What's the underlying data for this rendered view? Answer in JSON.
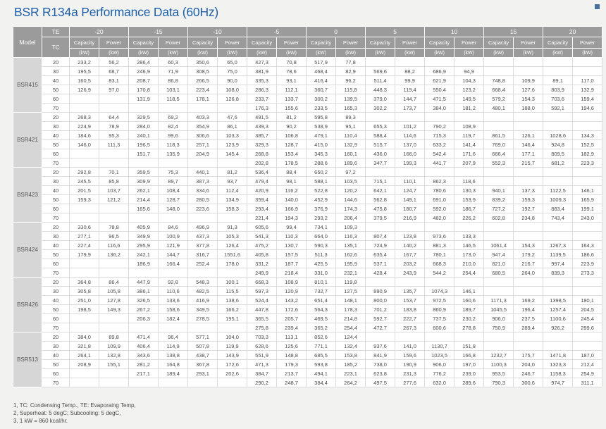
{
  "title": "BSR R134a Performance Data (60Hz)",
  "colors": {
    "accent_blue": "#1d5fa8",
    "header_gray": "#9b9b9b",
    "model_cell_gray": "#d6d6d6"
  },
  "table": {
    "model_header": "Model",
    "te_header": "TE",
    "tc_header": "TC",
    "capacity_label": "Capacity",
    "power_label": "Power",
    "unit_label": "(kW)",
    "te_values": [
      "-20",
      "-15",
      "-10",
      "-5",
      "0",
      "5",
      "10",
      "15",
      "20"
    ],
    "models": [
      {
        "name": "BSR415",
        "rows": [
          {
            "tc": "20",
            "values": [
              "233,2",
              "56,2",
              "286,4",
              "60,3",
              "350,6",
              "65,0",
              "427,3",
              "70,8",
              "517,9",
              "77,8",
              "",
              "",
              "",
              "",
              "",
              "",
              "",
              ""
            ]
          },
          {
            "tc": "30",
            "values": [
              "195,5",
              "68,7",
              "246,9",
              "71,9",
              "308,5",
              "75,0",
              "381,9",
              "78,6",
              "468,4",
              "82,9",
              "569,6",
              "88,2",
              "686,9",
              "94,9",
              "",
              "",
              "",
              ""
            ]
          },
          {
            "tc": "40",
            "values": [
              "160,5",
              "83,1",
              "208,7",
              "86,8",
              "266,5",
              "90,0",
              "335,3",
              "93,1",
              "416,4",
              "96,2",
              "511,4",
              "99,9",
              "621,9",
              "104,3",
              "748,8",
              "109,9",
              "89,1",
              "117,0"
            ]
          },
          {
            "tc": "50",
            "values": [
              "126,9",
              "97,0",
              "170,8",
              "103,1",
              "223,4",
              "108,0",
              "286,3",
              "112,1",
              "360,7",
              "115,8",
              "448,3",
              "119,4",
              "550,4",
              "123,2",
              "668,4",
              "127,6",
              "803,9",
              "132,9"
            ]
          },
          {
            "tc": "60",
            "values": [
              "",
              "",
              "131,9",
              "118,5",
              "178,1",
              "126,8",
              "233,7",
              "133,7",
              "300,2",
              "139,5",
              "379,0",
              "144,7",
              "471,5",
              "149,5",
              "579,2",
              "154,3",
              "703,6",
              "159,4"
            ]
          },
          {
            "tc": "70",
            "values": [
              "",
              "",
              "",
              "",
              "",
              "",
              "176,3",
              "155,6",
              "233,5",
              "165,3",
              "302,2",
              "173,7",
              "384,0",
              "181,2",
              "480,1",
              "188,0",
              "592,1",
              "194,6"
            ]
          }
        ]
      },
      {
        "name": "BSR421",
        "rows": [
          {
            "tc": "20",
            "values": [
              "268,3",
              "64,4",
              "329,5",
              "69,2",
              "403,3",
              "47,6",
              "491,5",
              "81,2",
              "595,8",
              "89,3",
              "",
              "",
              "",
              "",
              "",
              "",
              "",
              ""
            ]
          },
          {
            "tc": "30",
            "values": [
              "224,9",
              "78,9",
              "284,0",
              "82,4",
              "354,9",
              "86,1",
              "439,3",
              "90,2",
              "538,9",
              "95,1",
              "655,3",
              "101,2",
              "790,2",
              "108,9",
              "",
              "",
              "",
              ""
            ]
          },
          {
            "tc": "40",
            "values": [
              "184,6",
              "95,3",
              "240,1",
              "99,6",
              "306,6",
              "103,3",
              "385,7",
              "106,8",
              "479,1",
              "110,4",
              "588,4",
              "114,6",
              "715,3",
              "119,7",
              "861,5",
              "126,1",
              "1028,6",
              "134,3"
            ]
          },
          {
            "tc": "50",
            "values": [
              "146,0",
              "111,3",
              "196,5",
              "118,3",
              "257,1",
              "123,9",
              "329,3",
              "128,7",
              "415,0",
              "132,9",
              "515,7",
              "137,0",
              "633,2",
              "141,4",
              "769,0",
              "146,4",
              "924,8",
              "152,5"
            ]
          },
          {
            "tc": "60",
            "values": [
              "",
              "",
              "151,7",
              "135,9",
              "204,9",
              "145,4",
              "268,8",
              "153,4",
              "345,3",
              "160,1",
              "436,0",
              "166,0",
              "542,4",
              "171,6",
              "666,4",
              "177,1",
              "809,5",
              "182,9"
            ]
          },
          {
            "tc": "70",
            "values": [
              "",
              "",
              "",
              "",
              "",
              "",
              "202,8",
              "178,5",
              "288,6",
              "189,6",
              "347,7",
              "199,3",
              "441,7",
              "207,9",
              "552,3",
              "215,7",
              "681,2",
              "223,3"
            ]
          }
        ]
      },
      {
        "name": "BSR423",
        "rows": [
          {
            "tc": "20",
            "values": [
              "292,8",
              "70,1",
              "359,5",
              "75,3",
              "440,1",
              "81,2",
              "536,4",
              "88,4",
              "650,2",
              "97,2",
              "",
              "",
              "",
              "",
              "",
              "",
              "",
              ""
            ]
          },
          {
            "tc": "30",
            "values": [
              "245,5",
              "85,8",
              "309,9",
              "89,7",
              "387,3",
              "93,7",
              "479,4",
              "98,1",
              "588,1",
              "103,5",
              "715,1",
              "110,1",
              "862,3",
              "118,6",
              "",
              "",
              "",
              ""
            ]
          },
          {
            "tc": "40",
            "values": [
              "201,5",
              "103,7",
              "262,1",
              "108,4",
              "334,6",
              "112,4",
              "420,9",
              "116,2",
              "522,8",
              "120,2",
              "642,1",
              "124,7",
              "780,6",
              "130,3",
              "940,1",
              "137,3",
              "1122,5",
              "146,1"
            ]
          },
          {
            "tc": "50",
            "values": [
              "159,3",
              "121,2",
              "214,4",
              "128,7",
              "280,5",
              "134,9",
              "359,4",
              "140,0",
              "452,9",
              "144,6",
              "562,8",
              "149,1",
              "691,0",
              "153,9",
              "839,2",
              "159,3",
              "1009,3",
              "165,9"
            ]
          },
          {
            "tc": "60",
            "values": [
              "",
              "",
              "165,6",
              "148,0",
              "223,6",
              "158,3",
              "293,4",
              "166,9",
              "376,9",
              "174,3",
              "475,8",
              "180,7",
              "592,0",
              "186,7",
              "727,2",
              "192,7",
              "883,4",
              "199,1"
            ]
          },
          {
            "tc": "70",
            "values": [
              "",
              "",
              "",
              "",
              "",
              "",
              "221,4",
              "194,3",
              "293,2",
              "206,4",
              "379,5",
              "216,9",
              "482,0",
              "226,2",
              "602,8",
              "234,8",
              "743,4",
              "243,0"
            ]
          }
        ]
      },
      {
        "name": "BSR424",
        "rows": [
          {
            "tc": "20",
            "values": [
              "330,6",
              "78,8",
              "405,9",
              "84,6",
              "496,9",
              "91,3",
              "605,6",
              "99,4",
              "734,1",
              "109,3",
              "",
              "",
              "",
              "",
              "",
              "",
              "",
              ""
            ]
          },
          {
            "tc": "30",
            "values": [
              "277,1",
              "96,5",
              "349,9",
              "100,9",
              "437,3",
              "105,3",
              "541,3",
              "110,3",
              "664,0",
              "116,3",
              "807,4",
              "123,8",
              "973,6",
              "133,3",
              "",
              "",
              "",
              ""
            ]
          },
          {
            "tc": "40",
            "values": [
              "227,4",
              "116,6",
              "295,9",
              "121,9",
              "377,8",
              "126,4",
              "475,2",
              "130,7",
              "590,3",
              "135,1",
              "724,9",
              "140,2",
              "881,3",
              "146,5",
              "1061,4",
              "154,3",
              "1267,3",
              "164,3"
            ]
          },
          {
            "tc": "50",
            "values": [
              "179,9",
              "136,2",
              "242,1",
              "144,7",
              "316,7",
              "1551,6",
              "405,8",
              "157,5",
              "511,3",
              "162,6",
              "635,4",
              "167,7",
              "780,1",
              "173,0",
              "947,4",
              "179,2",
              "1139,5",
              "186,6"
            ]
          },
          {
            "tc": "60",
            "values": [
              "",
              "",
              "186,9",
              "166,4",
              "252,4",
              "178,0",
              "331,2",
              "187,7",
              "425,5",
              "195,9",
              "537,1",
              "203,2",
              "668,3",
              "210,0",
              "821,0",
              "216,7",
              "997,4",
              "223,9"
            ]
          },
          {
            "tc": "70",
            "values": [
              "",
              "",
              "",
              "",
              "",
              "",
              "249,9",
              "218,4",
              "331,0",
              "232,1",
              "428,4",
              "243,9",
              "544,2",
              "254,4",
              "680,5",
              "264,0",
              "839,3",
              "273,3"
            ]
          }
        ]
      },
      {
        "name": "BSR426",
        "rows": [
          {
            "tc": "20",
            "values": [
              "364,8",
              "86,4",
              "447,9",
              "92,8",
              "548,3",
              "100,1",
              "668,3",
              "108,9",
              "810,1",
              "119,8",
              "",
              "",
              "",
              "",
              "",
              "",
              "",
              ""
            ]
          },
          {
            "tc": "30",
            "values": [
              "305,8",
              "105,8",
              "386,1",
              "110,6",
              "482,5",
              "115,5",
              "597,3",
              "120,9",
              "732,7",
              "127,5",
              "890,9",
              "135,7",
              "1074,3",
              "146,1",
              "",
              "",
              "",
              ""
            ]
          },
          {
            "tc": "40",
            "values": [
              "251,0",
              "127,8",
              "326,5",
              "133,6",
              "416,9",
              "138,6",
              "524,4",
              "143,2",
              "651,4",
              "148,1",
              "800,0",
              "153,7",
              "972,5",
              "160,6",
              "1171,3",
              "169,2",
              "1398,5",
              "180,1"
            ]
          },
          {
            "tc": "50",
            "values": [
              "198,5",
              "149,3",
              "267,2",
              "158,6",
              "349,5",
              "166,2",
              "447,8",
              "172,6",
              "564,3",
              "178,3",
              "701,2",
              "183,8",
              "860,9",
              "189,7",
              "1045,5",
              "196,4",
              "1257,4",
              "204,5"
            ]
          },
          {
            "tc": "60",
            "values": [
              "",
              "",
              "206,3",
              "182,4",
              "278,5",
              "195,1",
              "365,5",
              "205,7",
              "469,5",
              "214,8",
              "592,7",
              "222,7",
              "737,5",
              "230,2",
              "906,0",
              "237,5",
              "1100,6",
              "245,4"
            ]
          },
          {
            "tc": "70",
            "values": [
              "",
              "",
              "",
              "",
              "",
              "",
              "275,8",
              "239,4",
              "365,2",
              "254,4",
              "472,7",
              "267,3",
              "600,6",
              "278,8",
              "750,9",
              "289,4",
              "926,2",
              "299,6"
            ]
          }
        ]
      },
      {
        "name": "BSR513",
        "rows": [
          {
            "tc": "20",
            "values": [
              "384,0",
              "89,8",
              "471,4",
              "96,4",
              "577,1",
              "104,0",
              "703,3",
              "113,1",
              "852,6",
              "124,4",
              "",
              "",
              "",
              "",
              "",
              "",
              "",
              ""
            ]
          },
          {
            "tc": "30",
            "values": [
              "321,8",
              "109,9",
              "406,4",
              "114,9",
              "507,8",
              "119,9",
              "628,6",
              "125,6",
              "771,1",
              "132,4",
              "937,6",
              "141,0",
              "1130,7",
              "151,8",
              "",
              "",
              "",
              ""
            ]
          },
          {
            "tc": "40",
            "values": [
              "264,1",
              "132,8",
              "343,6",
              "138,8",
              "438,7",
              "143,9",
              "551,9",
              "148,8",
              "685,5",
              "153,8",
              "841,9",
              "159,6",
              "1023,5",
              "166,8",
              "1232,7",
              "175,7",
              "1471,8",
              "187,0"
            ]
          },
          {
            "tc": "50",
            "values": [
              "208,9",
              "155,1",
              "281,2",
              "164,8",
              "367,8",
              "172,6",
              "471,3",
              "179,3",
              "593,8",
              "185,2",
              "738,0",
              "190,9",
              "906,0",
              "197,0",
              "1100,3",
              "204,0",
              "1323,3",
              "212,4"
            ]
          },
          {
            "tc": "60",
            "values": [
              "",
              "",
              "217,1",
              "189,4",
              "293,1",
              "202,6",
              "384,7",
              "213,7",
              "494,1",
              "223,1",
              "623,8",
              "231,3",
              "776,2",
              "239,0",
              "953,5",
              "246,7",
              "1158,3",
              "254,9"
            ]
          },
          {
            "tc": "70",
            "values": [
              "",
              "",
              "",
              "",
              "",
              "",
              "290,2",
              "248,7",
              "384,4",
              "264,2",
              "497,5",
              "277,6",
              "632,0",
              "289,6",
              "790,3",
              "300,6",
              "974,7",
              "311,1"
            ]
          }
        ]
      }
    ]
  },
  "notes": [
    "1, TC: Condensing Temp., TE: Evaporaing Temp,",
    "2, Superheat: 5 degC; Subcooling: 5 degC,",
    "3, 1 kW = 860 kcal/hr."
  ]
}
